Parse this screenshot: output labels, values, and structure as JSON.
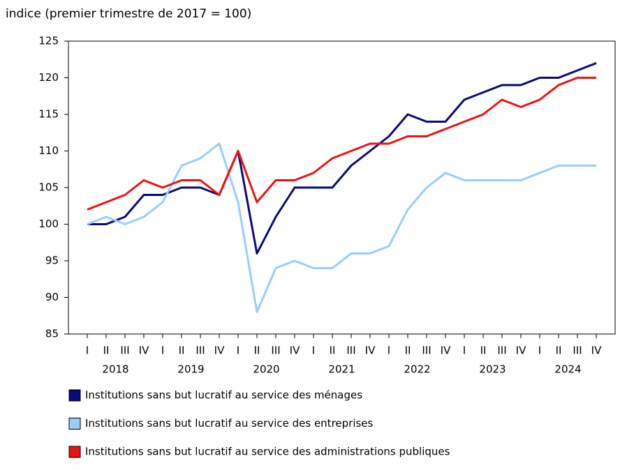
{
  "chart_data": {
    "type": "line",
    "y_axis_label": "indice (premier trimestre de 2017 = 100)",
    "categories": [
      "I",
      "II",
      "III",
      "IV",
      "I",
      "II",
      "III",
      "IV",
      "I",
      "II",
      "III",
      "IV",
      "I",
      "II",
      "III",
      "IV",
      "I",
      "II",
      "III",
      "IV",
      "I",
      "II",
      "III",
      "IV",
      "I",
      "II",
      "III",
      "IV"
    ],
    "years": [
      "2018",
      "2019",
      "2020",
      "2021",
      "2022",
      "2023",
      "2024"
    ],
    "ylim": [
      85,
      125
    ],
    "yticks": [
      85,
      90,
      95,
      100,
      105,
      110,
      115,
      120,
      125
    ],
    "grid": false,
    "legend_position": "bottom",
    "series": [
      {
        "name": "Institutions sans but lucratif au service des ménages",
        "color": "#0a0a78",
        "values": [
          100,
          100,
          101,
          104,
          104,
          105,
          105,
          104,
          110,
          96,
          101,
          105,
          105,
          105,
          108,
          110,
          112,
          115,
          114,
          114,
          117,
          118,
          119,
          119,
          120,
          120,
          121,
          122
        ]
      },
      {
        "name": "Institutions sans but lucratif au service des entreprises",
        "color": "#99ccff",
        "values": [
          100,
          101,
          100,
          101,
          103,
          108,
          109,
          111,
          103,
          88,
          94,
          95,
          94,
          94,
          96,
          96,
          97,
          102,
          105,
          107,
          106,
          106,
          106,
          106,
          107,
          108,
          108,
          108
        ]
      },
      {
        "name": "Institutions sans but lucratif au service des administrations publiques",
        "color": "#ee1111",
        "values": [
          102,
          103,
          104,
          106,
          105,
          106,
          106,
          104,
          110,
          103,
          106,
          106,
          107,
          109,
          110,
          111,
          111,
          112,
          112,
          113,
          114,
          115,
          117,
          116,
          117,
          119,
          120,
          120
        ]
      }
    ]
  }
}
